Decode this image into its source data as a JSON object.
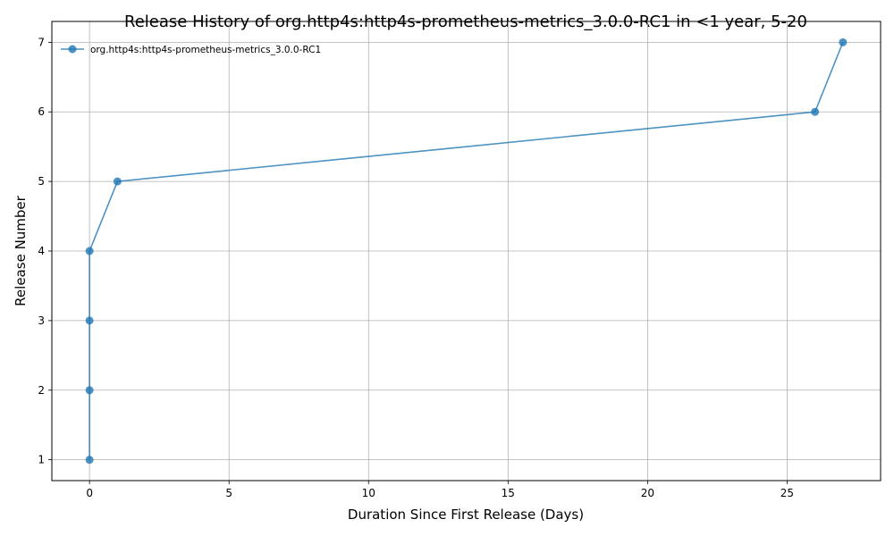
{
  "chart_data": {
    "type": "line",
    "title": "Release History of org.http4s:http4s-prometheus-metrics_3.0.0-RC1 in <1 year, 5-20",
    "xlabel": "Duration Since First Release (Days)",
    "ylabel": "Release Number",
    "xlim": [
      -1.35,
      28.35
    ],
    "ylim": [
      0.7,
      7.3
    ],
    "xticks": [
      0,
      5,
      10,
      15,
      20,
      25
    ],
    "yticks": [
      1,
      2,
      3,
      4,
      5,
      6,
      7
    ],
    "grid": true,
    "legend_position": "top-left",
    "series": [
      {
        "name": "org.http4s:http4s-prometheus-metrics_3.0.0-RC1",
        "color": "#1f77b4",
        "x": [
          0,
          0,
          0,
          0,
          1,
          26,
          27
        ],
        "y": [
          1,
          2,
          3,
          4,
          5,
          6,
          7
        ]
      }
    ]
  }
}
